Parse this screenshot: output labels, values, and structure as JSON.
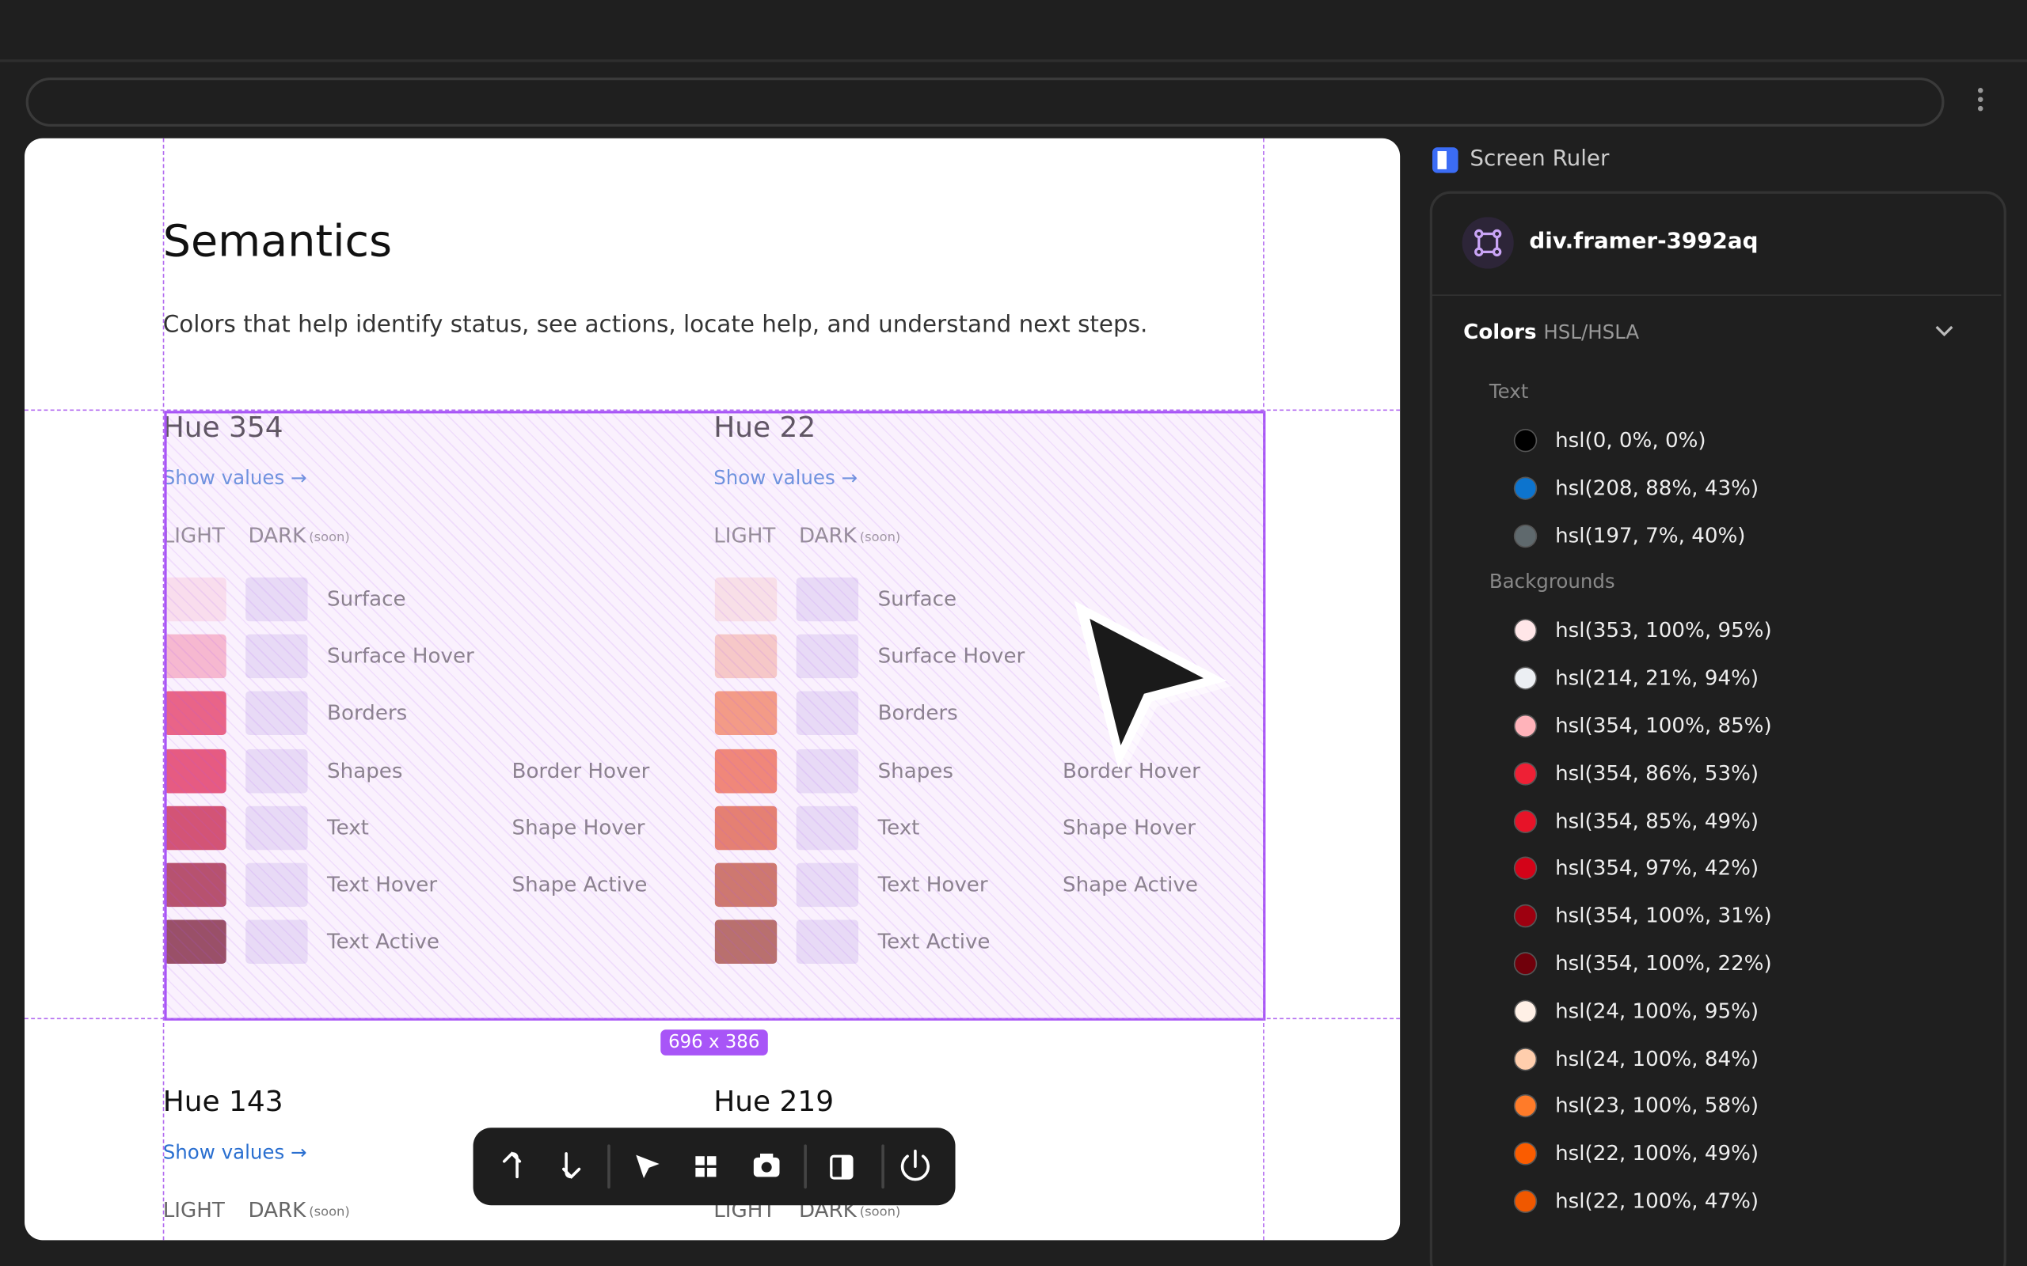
{
  "page": {
    "heading": "Semantics",
    "description": "Colors that help identify status, see actions, locate help, and understand next steps.",
    "size_badge": "696 x 386",
    "dark_swatch_color": "#e4dcf5",
    "hues": [
      {
        "title": "Hue 354",
        "link": "Show values →",
        "light": "LIGHT",
        "dark": "DARK",
        "soon": "(soon)",
        "rows": [
          {
            "label": "Surface",
            "color": "#fde1e7"
          },
          {
            "label": "Surface Hover",
            "color": "#f9a8bb"
          },
          {
            "label": "Borders",
            "color": "#e5274c"
          },
          {
            "label": "Shapes",
            "color": "#e11a43"
          },
          {
            "label": "Text",
            "color": "#c30f30"
          },
          {
            "label": "Text Hover",
            "color": "#980c25"
          },
          {
            "label": "Text Active",
            "color": "#6c081b"
          }
        ],
        "extra_labels": [
          "Border Hover",
          "Shape Hover",
          "Shape Active"
        ]
      },
      {
        "title": "Hue 22",
        "link": "Show values →",
        "light": "LIGHT",
        "dark": "DARK",
        "soon": "(soon)",
        "rows": [
          {
            "label": "Surface",
            "color": "#fce3dd"
          },
          {
            "label": "Surface Hover",
            "color": "#f9c0ae"
          },
          {
            "label": "Borders",
            "color": "#f47b4b"
          },
          {
            "label": "Shapes",
            "color": "#f05c37"
          },
          {
            "label": "Text",
            "color": "#df522b"
          },
          {
            "label": "Text Hover",
            "color": "#bc4627"
          },
          {
            "label": "Text Active",
            "color": "#9b3a24"
          }
        ],
        "extra_labels": [
          "Border Hover",
          "Shape Hover",
          "Shape Active"
        ]
      },
      {
        "title": "Hue 143",
        "link": "Show values →",
        "light": "LIGHT",
        "dark": "DARK",
        "soon": "(soon)",
        "rows": [],
        "extra_labels": []
      },
      {
        "title": "Hue 219",
        "light": "LIGHT",
        "dark": "DARK",
        "soon": "(soon)",
        "rows": [],
        "extra_labels": []
      }
    ]
  },
  "panel": {
    "title": "Screen Ruler",
    "element": "div.framer-3992aq",
    "section": "Colors",
    "format": "HSL/HSLA",
    "groups": [
      {
        "label": "Text",
        "colors": [
          "hsl(0, 0%, 0%)",
          "hsl(208, 88%, 43%)",
          "hsl(197, 7%, 40%)"
        ]
      },
      {
        "label": "Backgrounds",
        "colors": [
          "hsl(353, 100%, 95%)",
          "hsl(214, 21%, 94%)",
          "hsl(354, 100%, 85%)",
          "hsl(354, 86%, 53%)",
          "hsl(354, 85%, 49%)",
          "hsl(354, 97%, 42%)",
          "hsl(354, 100%, 31%)",
          "hsl(354, 100%, 22%)",
          "hsl(24, 100%, 95%)",
          "hsl(24, 100%, 84%)",
          "hsl(23, 100%, 58%)",
          "hsl(22, 100%, 49%)",
          "hsl(22, 100%, 47%)"
        ]
      }
    ]
  }
}
